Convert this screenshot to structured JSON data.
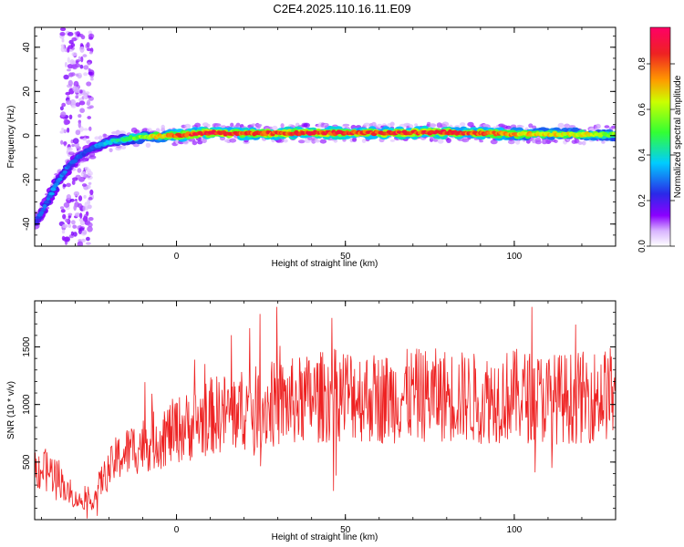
{
  "title": "C2E4.2025.110.16.11.E09",
  "colors": {
    "axis": "#000000",
    "snr_line": "#ee2222",
    "colormap": [
      "#ffffff",
      "#e6d5ff",
      "#8b00ff",
      "#2a2ae8",
      "#00ccff",
      "#33ff33",
      "#ccff00",
      "#ff9900",
      "#ee2222",
      "#ff0066"
    ]
  },
  "chart_data": [
    {
      "type": "heatmap",
      "title": "C2E4.2025.110.16.11.E09",
      "xlabel": "Height of straight line (km)",
      "ylabel": "Frequency (Hz)",
      "xlim": [
        -42,
        130
      ],
      "ylim": [
        -50,
        49
      ],
      "xticks": [
        0,
        50,
        100
      ],
      "yticks": [
        -40,
        -20,
        0,
        20,
        40
      ],
      "grid": false,
      "colorbar": {
        "label": "Normalized spectral amplitude",
        "ticks": [
          0.0,
          0.2,
          0.4,
          0.6,
          0.8
        ],
        "range": [
          0,
          0.96
        ]
      },
      "ridge": {
        "x": [
          -42,
          -40,
          -38,
          -36,
          -34,
          -32,
          -30,
          -28,
          -26,
          -24,
          -22,
          -20,
          -18,
          -16,
          -14,
          -12,
          -10,
          -5,
          0,
          10,
          20,
          40,
          60,
          80,
          100,
          120,
          130
        ],
        "frequency": [
          -40,
          -35,
          -29,
          -23,
          -18,
          -14,
          -11,
          -8.5,
          -6.5,
          -5,
          -4,
          -3,
          -2.3,
          -1.7,
          -1.2,
          -0.9,
          -0.6,
          -0.2,
          0.1,
          1.3,
          0.9,
          1.3,
          1.2,
          1.5,
          0.7,
          0.6,
          0.4
        ],
        "amplitude": [
          0.25,
          0.3,
          0.32,
          0.35,
          0.33,
          0.3,
          0.3,
          0.28,
          0.3,
          0.32,
          0.38,
          0.42,
          0.45,
          0.5,
          0.55,
          0.58,
          0.62,
          0.75,
          0.85,
          0.95,
          0.88,
          0.92,
          0.9,
          0.92,
          0.78,
          0.7,
          0.62
        ]
      },
      "scatter_band": {
        "x_range": [
          -34,
          -25
        ],
        "frequency_range": [
          -50,
          49
        ]
      }
    },
    {
      "type": "line",
      "xlabel": "Height of straight line (km)",
      "ylabel": "SNR (10 * v/v)",
      "xlim": [
        -42,
        130
      ],
      "ylim": [
        0,
        1900
      ],
      "xticks": [
        0,
        50,
        100
      ],
      "yticks": [
        500,
        1000,
        1500
      ],
      "grid": false,
      "series": [
        {
          "x": [
            -42,
            -38,
            -35,
            -32,
            -30,
            -28,
            -25,
            -22,
            -18,
            -14,
            -10,
            -5,
            0,
            5,
            10,
            15,
            20,
            30,
            40,
            50,
            60,
            70,
            80,
            90,
            100,
            110,
            120,
            130
          ],
          "y": [
            450,
            420,
            380,
            220,
            180,
            160,
            150,
            350,
            520,
            600,
            650,
            700,
            780,
            820,
            900,
            930,
            950,
            1000,
            1050,
            1100,
            1050,
            1080,
            1080,
            1050,
            1080,
            1050,
            1060,
            1100
          ]
        }
      ]
    }
  ]
}
